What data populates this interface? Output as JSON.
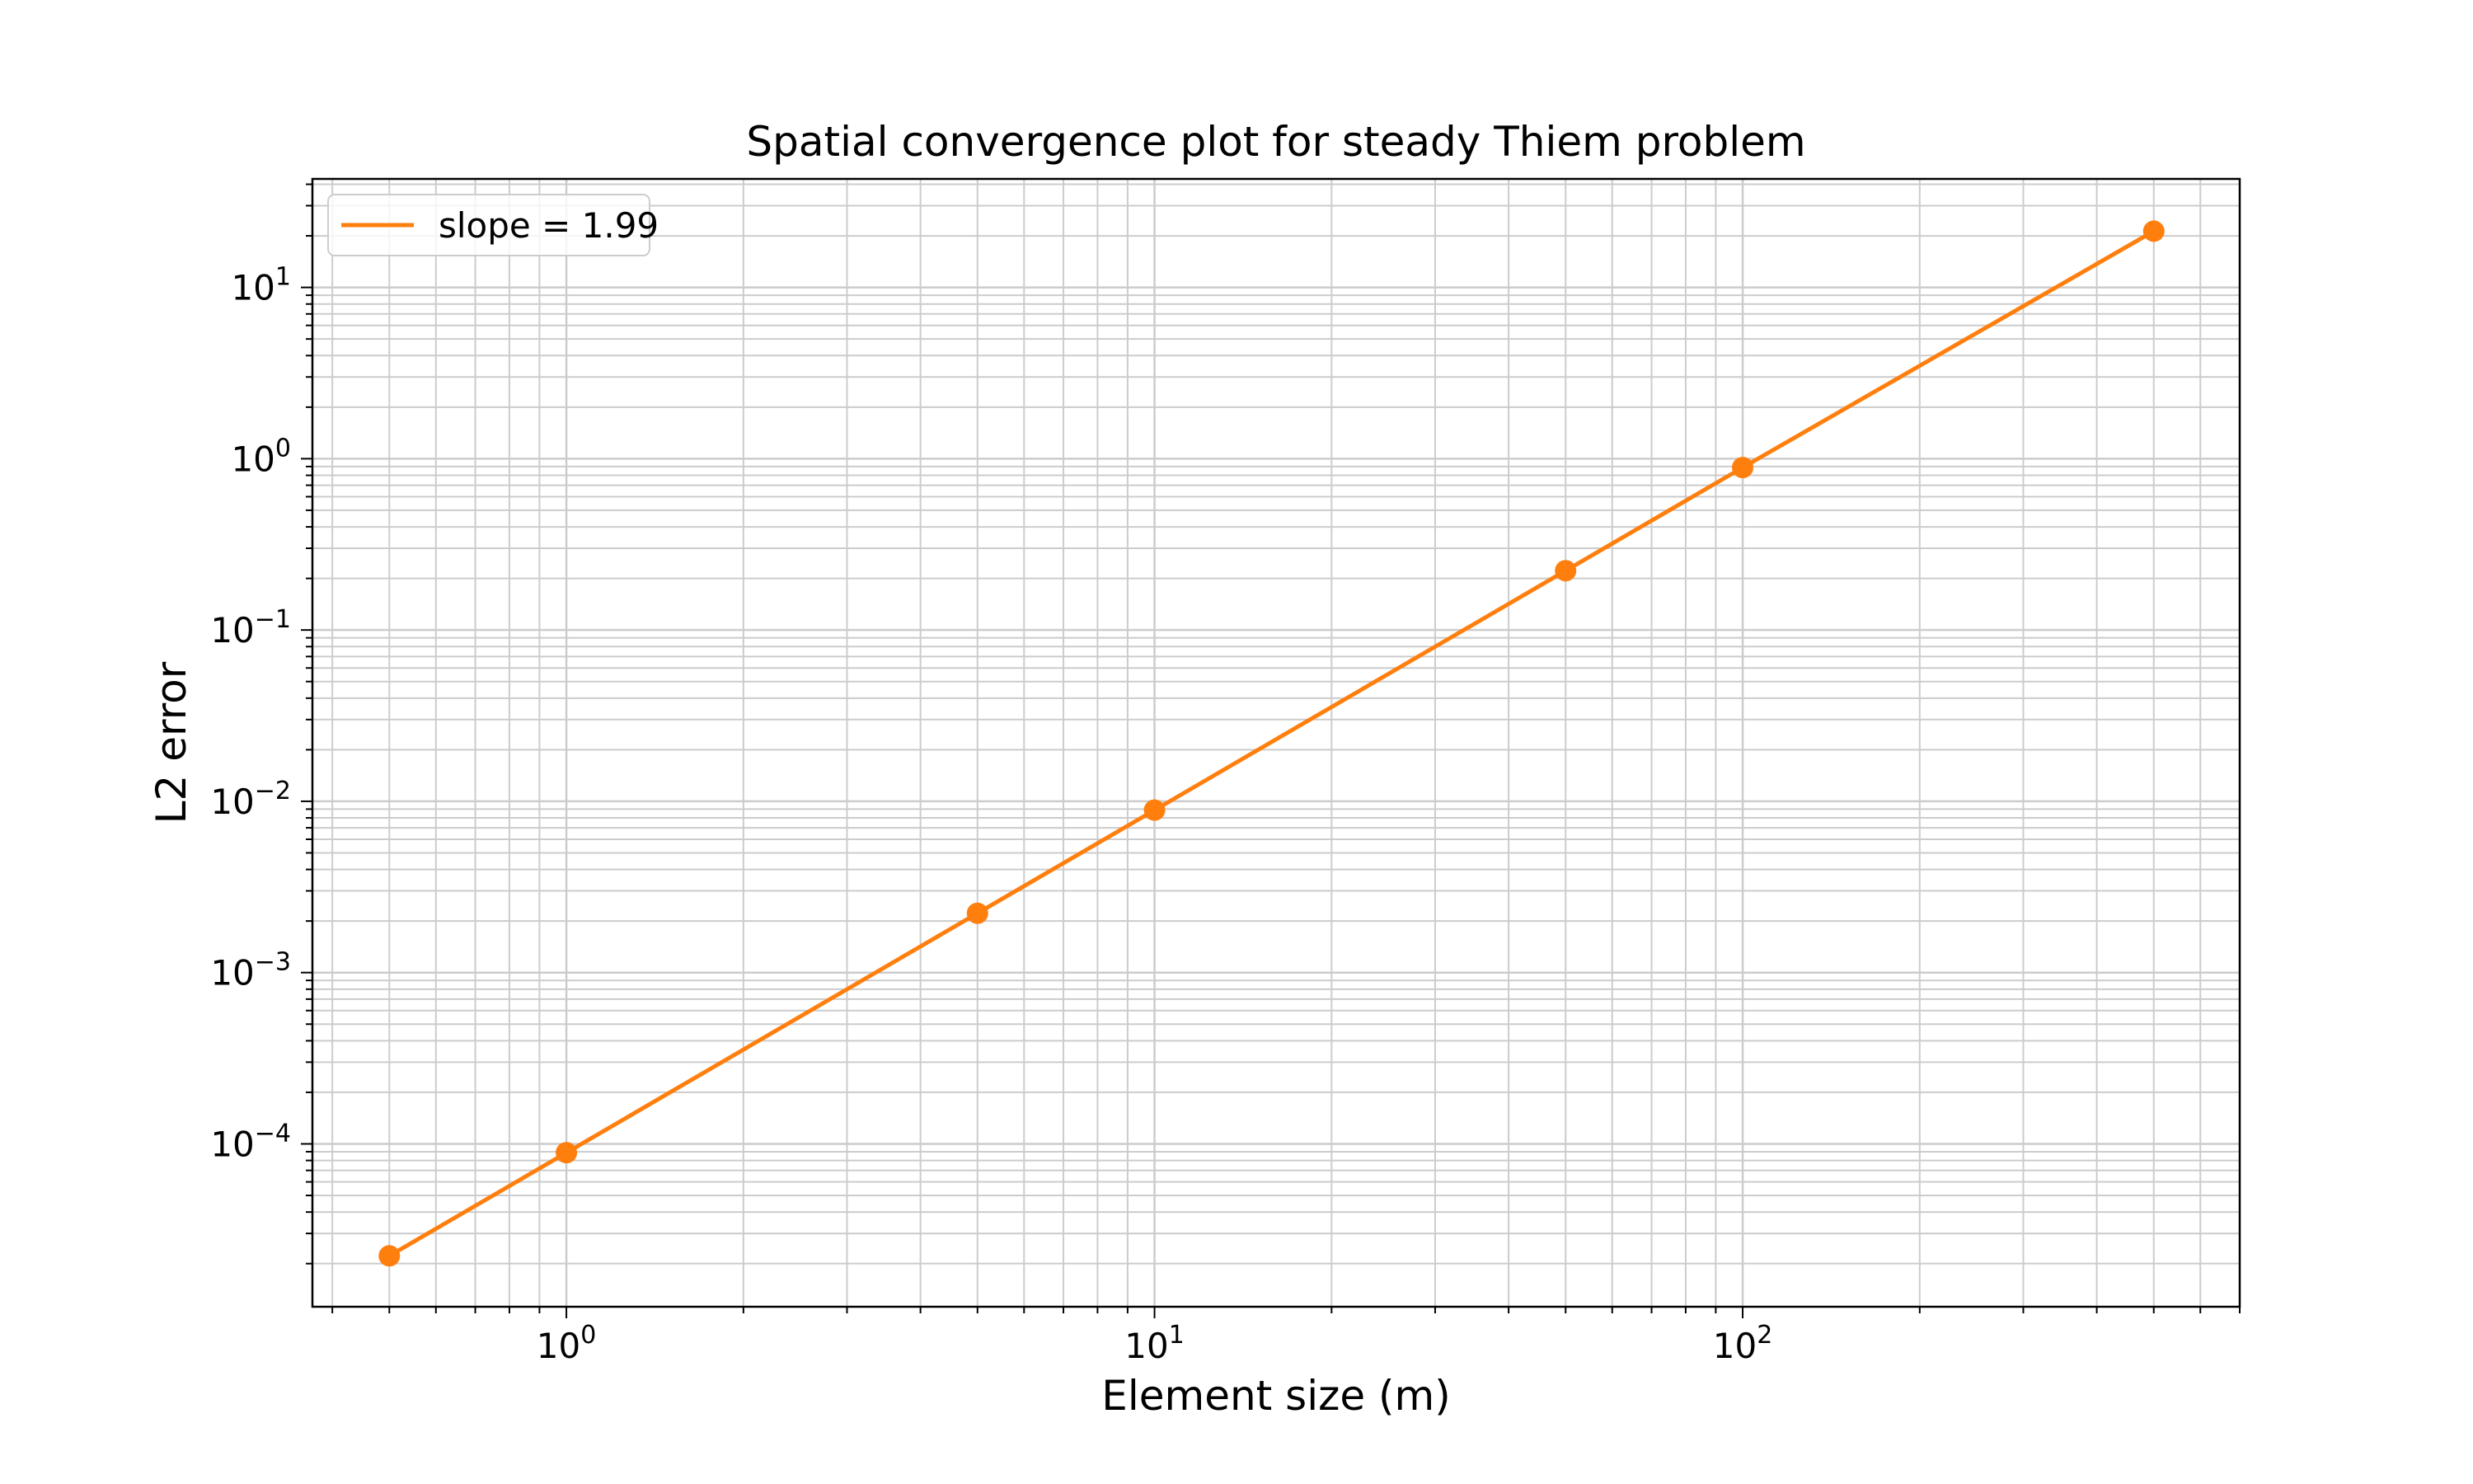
{
  "chart_data": {
    "type": "line",
    "title": "Spatial convergence plot for steady Thiem problem",
    "xlabel": "Element size (m)",
    "ylabel": "L2 error",
    "xscale": "log",
    "yscale": "log",
    "xlim": [
      0.37,
      700
    ],
    "ylim": [
      1.12e-05,
      43
    ],
    "grid": "major and minor",
    "legend_position": "top-left",
    "x_ticks": [
      {
        "base": "10",
        "exp": "0",
        "value": 1
      },
      {
        "base": "10",
        "exp": "1",
        "value": 10
      },
      {
        "base": "10",
        "exp": "2",
        "value": 100
      }
    ],
    "y_ticks": [
      {
        "base": "10",
        "exp": "−4",
        "value": 0.0001
      },
      {
        "base": "10",
        "exp": "−3",
        "value": 0.001
      },
      {
        "base": "10",
        "exp": "−2",
        "value": 0.01
      },
      {
        "base": "10",
        "exp": "−1",
        "value": 0.1
      },
      {
        "base": "10",
        "exp": "0",
        "value": 1
      },
      {
        "base": "10",
        "exp": "1",
        "value": 10
      }
    ],
    "series": [
      {
        "name": "slope = 1.99",
        "color": "#ff7f0e",
        "marker": "circle",
        "x": [
          0.5,
          1,
          5,
          10,
          50,
          100,
          500
        ],
        "y": [
          2.22e-05,
          8.88e-05,
          0.00222,
          0.00888,
          0.222,
          0.888,
          21.3
        ]
      }
    ]
  }
}
